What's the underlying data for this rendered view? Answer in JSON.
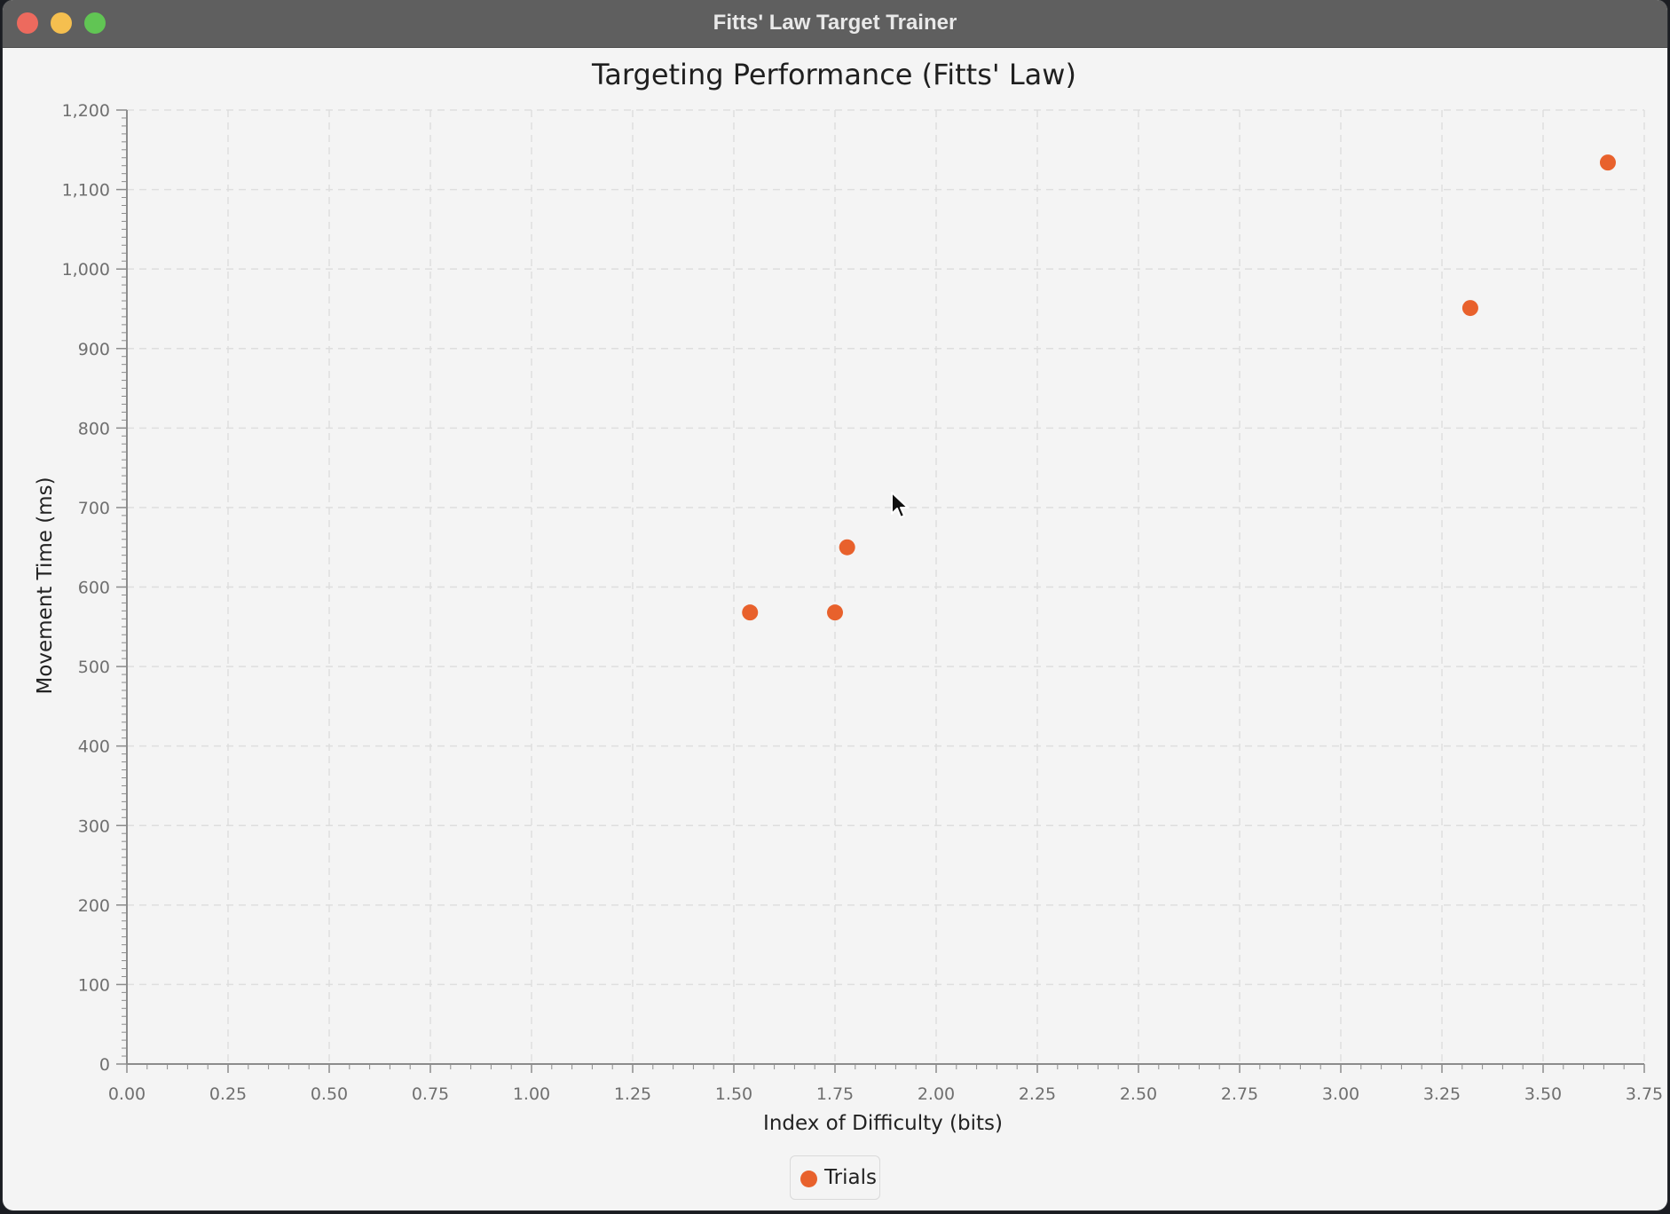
{
  "window": {
    "title": "Fitts' Law Target Trainer"
  },
  "colors": {
    "point": "#e8612c",
    "grid": "#dedede",
    "axis": "#8c8c8c",
    "background": "#f4f4f4"
  },
  "chart_data": {
    "type": "scatter",
    "title": "Targeting Performance (Fitts' Law)",
    "xlabel": "Index of Difficulty (bits)",
    "ylabel": "Movement Time (ms)",
    "xlim": [
      0,
      3.75
    ],
    "ylim": [
      0,
      1200
    ],
    "x_ticks": [
      "0.00",
      "0.25",
      "0.50",
      "0.75",
      "1.00",
      "1.25",
      "1.50",
      "1.75",
      "2.00",
      "2.25",
      "2.50",
      "2.75",
      "3.00",
      "3.25",
      "3.50",
      "3.75"
    ],
    "y_ticks": [
      "0",
      "100",
      "200",
      "300",
      "400",
      "500",
      "600",
      "700",
      "800",
      "900",
      "1,000",
      "1,100",
      "1,200"
    ],
    "grid": true,
    "legend_position": "bottom-center",
    "series": [
      {
        "name": "Trials",
        "points": [
          {
            "x": 1.54,
            "y": 568
          },
          {
            "x": 1.75,
            "y": 568
          },
          {
            "x": 1.78,
            "y": 650
          },
          {
            "x": 3.32,
            "y": 951
          },
          {
            "x": 3.66,
            "y": 1134
          }
        ]
      }
    ]
  }
}
